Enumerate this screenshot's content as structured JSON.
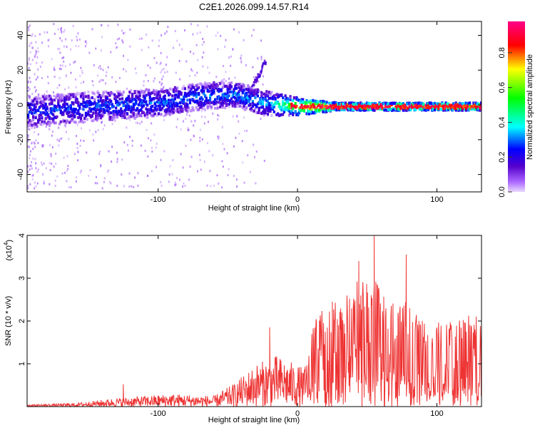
{
  "figure": {
    "title": "C2E1.2026.099.14.57.R14"
  },
  "chart_data": [
    {
      "type": "heatmap",
      "name": "spectrogram",
      "title": "C2E1.2026.099.14.57.R14",
      "xlabel": "Height of straight line (km)",
      "ylabel": "Frequency (Hz)",
      "xlim": [
        -194,
        132
      ],
      "ylim": [
        -50,
        48
      ],
      "xticks": [
        -100,
        0,
        100
      ],
      "yticks": [
        -40,
        -20,
        0,
        20,
        40
      ],
      "trend": [
        {
          "x": -190,
          "freq": -4
        },
        {
          "x": -150,
          "freq": -1
        },
        {
          "x": -100,
          "freq": 1
        },
        {
          "x": -70,
          "freq": 5
        },
        {
          "x": -45,
          "freq": 6
        },
        {
          "x": -25,
          "freq": 1
        },
        {
          "x": 0,
          "freq": -1
        },
        {
          "x": 50,
          "freq": -1
        },
        {
          "x": 132,
          "freq": -1
        }
      ],
      "max_amplitude": 0.98
    },
    {
      "type": "colorbar",
      "label": "Normalized spectral amplitude",
      "range": [
        0,
        0.98
      ],
      "ticks": [
        "0.0",
        "0.2",
        "0.4",
        "0.6",
        "0.8"
      ],
      "colors": [
        "#cc88ff",
        "#5500cc",
        "#0000ff",
        "#00ffff",
        "#00ff00",
        "#ffff00",
        "#ff0000",
        "#ff0088"
      ]
    },
    {
      "type": "line",
      "name": "snr",
      "xlabel": "Height of straight line (km)",
      "ylabel": "SNR (10 * v/v)",
      "multiplier": "(x10",
      "multiplier_exp": "4",
      "xlim": [
        -194,
        132
      ],
      "ylim": [
        0,
        4
      ],
      "xticks": [
        -100,
        0,
        100
      ],
      "yticks": [
        1,
        2,
        3,
        4
      ],
      "color": "#ee3333",
      "envelope": [
        {
          "x": -194,
          "value": 0.05
        },
        {
          "x": -160,
          "value": 0.08
        },
        {
          "x": -130,
          "value": 0.2
        },
        {
          "x": -90,
          "value": 0.3
        },
        {
          "x": -60,
          "value": 0.25
        },
        {
          "x": -45,
          "value": 0.55
        },
        {
          "x": -30,
          "value": 1.0
        },
        {
          "x": -15,
          "value": 1.2
        },
        {
          "x": 5,
          "value": 0.9
        },
        {
          "x": 12,
          "value": 2.0
        },
        {
          "x": 25,
          "value": 2.3
        },
        {
          "x": 50,
          "value": 3.0
        },
        {
          "x": 70,
          "value": 2.6
        },
        {
          "x": 95,
          "value": 1.9
        },
        {
          "x": 115,
          "value": 2.0
        },
        {
          "x": 132,
          "value": 2.2
        }
      ],
      "peaks": [
        {
          "x": 55,
          "value": 4.0
        },
        {
          "x": 78,
          "value": 3.55
        },
        {
          "x": 44,
          "value": 3.4
        },
        {
          "x": 25,
          "value": 2.45
        },
        {
          "x": -20,
          "value": 1.85
        },
        {
          "x": -125,
          "value": 0.52
        }
      ]
    }
  ]
}
